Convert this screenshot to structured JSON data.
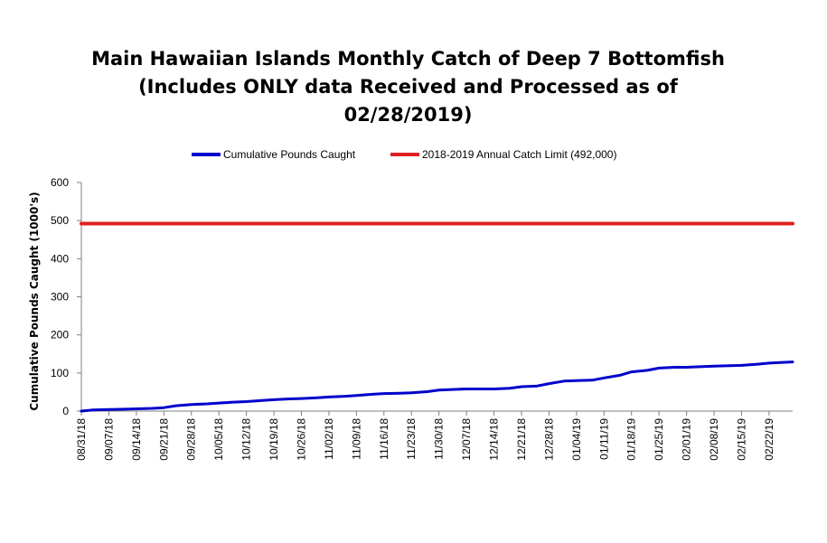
{
  "chart_data": {
    "type": "line",
    "title_lines": [
      "Main Hawaiian Islands Monthly Catch of Deep 7 Bottomfish",
      "(Includes ONLY data Received and Processed as of",
      "02/28/2019)"
    ],
    "xlabel": "",
    "ylabel": "Cumulative Pounds Caught (1000's)",
    "ylim": [
      0,
      600
    ],
    "yticks": [
      "0",
      "100",
      "200",
      "300",
      "400",
      "500",
      "600"
    ],
    "xlim": [
      "2018-08-31",
      "2019-02-28"
    ],
    "xticks": [
      "08/31/18",
      "09/07/18",
      "09/14/18",
      "09/21/18",
      "09/28/18",
      "10/05/18",
      "10/12/18",
      "10/19/18",
      "10/26/18",
      "11/02/18",
      "11/09/18",
      "11/16/18",
      "11/23/18",
      "11/30/18",
      "12/07/18",
      "12/14/18",
      "12/21/18",
      "12/28/18",
      "01/04/19",
      "01/11/19",
      "01/18/19",
      "01/25/19",
      "02/01/19",
      "02/08/19",
      "02/15/19",
      "02/22/19"
    ],
    "legend_position": "top",
    "grid": false,
    "series": [
      {
        "name": "Cumulative Pounds Caught",
        "color": "#0000cc",
        "x": [
          "2018-08-31",
          "2018-09-03",
          "2018-09-07",
          "2018-09-11",
          "2018-09-14",
          "2018-09-18",
          "2018-09-21",
          "2018-09-24",
          "2018-09-28",
          "2018-10-02",
          "2018-10-05",
          "2018-10-08",
          "2018-10-12",
          "2018-10-16",
          "2018-10-19",
          "2018-10-23",
          "2018-10-26",
          "2018-10-30",
          "2018-11-02",
          "2018-11-06",
          "2018-11-09",
          "2018-11-13",
          "2018-11-16",
          "2018-11-20",
          "2018-11-23",
          "2018-11-27",
          "2018-11-30",
          "2018-12-04",
          "2018-12-07",
          "2018-12-11",
          "2018-12-14",
          "2018-12-18",
          "2018-12-21",
          "2018-12-25",
          "2018-12-28",
          "2019-01-01",
          "2019-01-04",
          "2019-01-08",
          "2019-01-11",
          "2019-01-15",
          "2019-01-18",
          "2019-01-22",
          "2019-01-25",
          "2019-01-29",
          "2019-02-01",
          "2019-02-05",
          "2019-02-08",
          "2019-02-12",
          "2019-02-15",
          "2019-02-19",
          "2019-02-22",
          "2019-02-26",
          "2019-02-28"
        ],
        "values": [
          0,
          3,
          4,
          5,
          6,
          7,
          9,
          14,
          17,
          19,
          21,
          23,
          25,
          28,
          30,
          32,
          33,
          35,
          37,
          39,
          41,
          44,
          46,
          47,
          48,
          51,
          55,
          57,
          58,
          58,
          58,
          60,
          64,
          66,
          72,
          79,
          80,
          81,
          87,
          94,
          103,
          107,
          113,
          115,
          115,
          117,
          118,
          119,
          120,
          123,
          126,
          128,
          129
        ]
      },
      {
        "name": "2018-2019 Annual Catch Limit (492,000)",
        "color": "#e02020",
        "x": [
          "2018-08-31",
          "2019-02-28"
        ],
        "values": [
          492,
          492
        ]
      }
    ]
  }
}
